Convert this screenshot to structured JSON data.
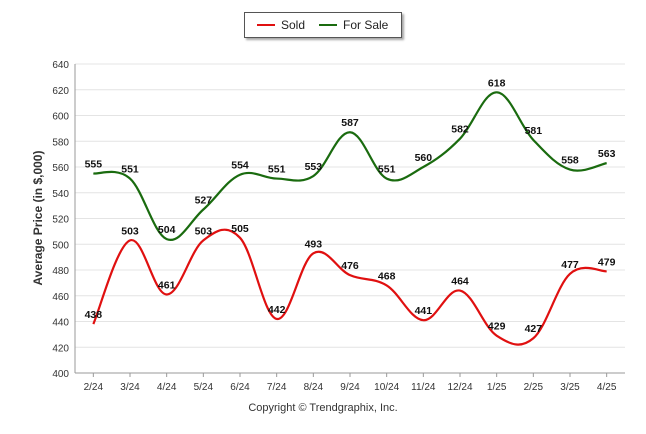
{
  "chart_data": {
    "type": "line",
    "ylabel": "Average Price (in $,000)",
    "xlabel": "",
    "categories": [
      "2/24",
      "3/24",
      "4/24",
      "5/24",
      "6/24",
      "7/24",
      "8/24",
      "9/24",
      "10/24",
      "11/24",
      "12/24",
      "1/25",
      "2/25",
      "3/25",
      "4/25"
    ],
    "ylim": [
      400,
      640
    ],
    "yticks": [
      400,
      420,
      440,
      460,
      480,
      500,
      520,
      540,
      560,
      580,
      600,
      620,
      640
    ],
    "grid": true,
    "legend_position": "top-center",
    "series": [
      {
        "name": "Sold",
        "color": "#e01010",
        "values": [
          438,
          503,
          461,
          503,
          505,
          442,
          493,
          476,
          468,
          441,
          464,
          429,
          427,
          477,
          479
        ]
      },
      {
        "name": "For Sale",
        "color": "#1a6b0f",
        "values": [
          555,
          551,
          504,
          527,
          554,
          551,
          553,
          587,
          551,
          560,
          582,
          618,
          581,
          558,
          563
        ]
      }
    ]
  },
  "copyright": "Copyright © Trendgraphix, Inc."
}
